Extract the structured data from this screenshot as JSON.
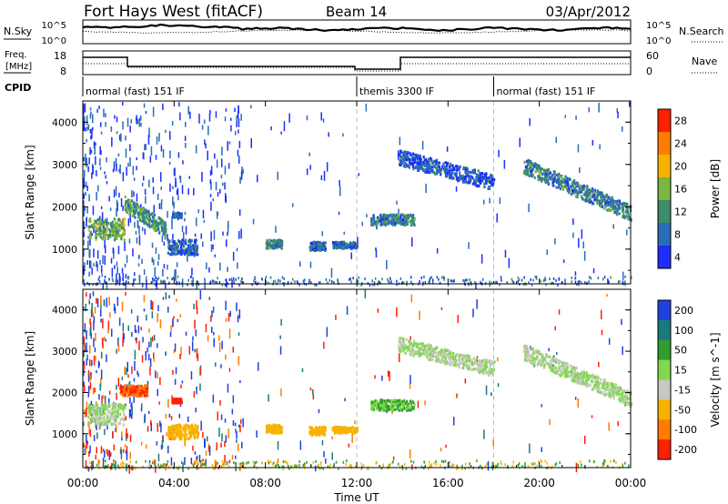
{
  "header": {
    "station": "Fort Hays West (fitACF)",
    "beam": "Beam 14",
    "date": "03/Apr/2012"
  },
  "noise_panel": {
    "left_label": "N.Sky",
    "right_label": "N.Search",
    "ticks_left": [
      "10^5",
      "10^0"
    ],
    "ticks_right": [
      "10^5",
      "10^0"
    ]
  },
  "freq_panel": {
    "left_label_1": "Freq.",
    "left_label_2": "[MHz]",
    "ticks_left": [
      "18",
      "8"
    ],
    "right_label": "Nave",
    "ticks_right": [
      "60",
      "0"
    ]
  },
  "cpid": {
    "label": "CPID",
    "segments": [
      {
        "label": "normal (fast) 151 IF",
        "start": 0,
        "end": 12
      },
      {
        "label": "themis 3300 IF",
        "start": 12,
        "end": 18
      },
      {
        "label": "normal (fast) 151 IF",
        "start": 18,
        "end": 24
      }
    ]
  },
  "chart_data": [
    {
      "type": "heatmap",
      "title": "",
      "ylabel": "Slant Range [km]",
      "quantity": "Power",
      "colorbar_label": "Power [dB]",
      "colorbar_ticks": [
        "4",
        "8",
        "12",
        "16",
        "20",
        "24",
        "28"
      ],
      "colorbar_colors": [
        "#1d2dff",
        "#2a6cb8",
        "#3d8c6a",
        "#7ab640",
        "#f7b200",
        "#ff7c00",
        "#ff2000"
      ],
      "ylim": [
        180,
        4500
      ],
      "yticks": [
        "1000",
        "2000",
        "3000",
        "4000"
      ],
      "xlim_hours": [
        0,
        24
      ],
      "echo_regions_hours_km": [
        {
          "t": [
            0.2,
            1.8
          ],
          "r": [
            1250,
            1750
          ],
          "power_db": 14
        },
        {
          "t": [
            1.8,
            3.6
          ],
          "r": [
            1300,
            2100
          ],
          "power_db": 12
        },
        {
          "t": [
            3.7,
            5.0
          ],
          "r": [
            900,
            1250
          ],
          "power_db": 8
        },
        {
          "t": [
            3.9,
            4.3
          ],
          "r": [
            1780,
            1880
          ],
          "power_db": 8
        },
        {
          "t": [
            8.0,
            8.7
          ],
          "r": [
            1050,
            1250
          ],
          "power_db": 10
        },
        {
          "t": [
            9.9,
            10.6
          ],
          "r": [
            1000,
            1200
          ],
          "power_db": 8
        },
        {
          "t": [
            10.9,
            12.0
          ],
          "r": [
            1050,
            1200
          ],
          "power_db": 8
        },
        {
          "t": [
            12.6,
            14.5
          ],
          "r": [
            1600,
            1850
          ],
          "power_db": 10
        },
        {
          "t": [
            13.8,
            18.0
          ],
          "r": [
            2400,
            3200
          ],
          "power_db": 6
        },
        {
          "t": [
            19.3,
            24.0
          ],
          "r": [
            1500,
            3000
          ],
          "power_db": 10
        }
      ]
    },
    {
      "type": "heatmap",
      "title": "",
      "ylabel": "Slant Range [km]",
      "xlabel": "Time UT",
      "quantity": "Velocity",
      "colorbar_label": "Velocity [m s^-1]",
      "colorbar_ticks": [
        "200",
        "100",
        "50",
        "15",
        "-15",
        "-50",
        "-100",
        "-200"
      ],
      "colorbar_colors": [
        "#2040e0",
        "#1a7a7a",
        "#2f9e2f",
        "#7fd84d",
        "#c8c8c0",
        "#f7b200",
        "#ff7c00",
        "#ff2000"
      ],
      "ylim": [
        180,
        4500
      ],
      "yticks": [
        "1000",
        "2000",
        "3000",
        "4000"
      ],
      "xticks": [
        "00:00",
        "04:00",
        "08:00",
        "12:00",
        "16:00",
        "20:00",
        "00:00"
      ],
      "xlim_hours": [
        0,
        24
      ],
      "echo_regions_hours_km": [
        {
          "t": [
            0.2,
            1.8
          ],
          "r": [
            1250,
            1750
          ],
          "velocity": 0
        },
        {
          "t": [
            1.6,
            2.8
          ],
          "r": [
            1950,
            2200
          ],
          "velocity": -150
        },
        {
          "t": [
            3.9,
            4.3
          ],
          "r": [
            1780,
            1880
          ],
          "velocity": -200
        },
        {
          "t": [
            3.7,
            5.0
          ],
          "r": [
            900,
            1250
          ],
          "velocity": -60
        },
        {
          "t": [
            8.0,
            8.7
          ],
          "r": [
            1050,
            1250
          ],
          "velocity": -60
        },
        {
          "t": [
            9.9,
            10.6
          ],
          "r": [
            1000,
            1200
          ],
          "velocity": -60
        },
        {
          "t": [
            10.9,
            12.0
          ],
          "r": [
            1050,
            1200
          ],
          "velocity": -60
        },
        {
          "t": [
            12.6,
            14.5
          ],
          "r": [
            1600,
            1850
          ],
          "velocity": 30
        },
        {
          "t": [
            13.8,
            18.0
          ],
          "r": [
            2400,
            3200
          ],
          "velocity": 0
        },
        {
          "t": [
            19.3,
            24.0
          ],
          "r": [
            1500,
            3000
          ],
          "velocity": 0
        }
      ]
    }
  ]
}
